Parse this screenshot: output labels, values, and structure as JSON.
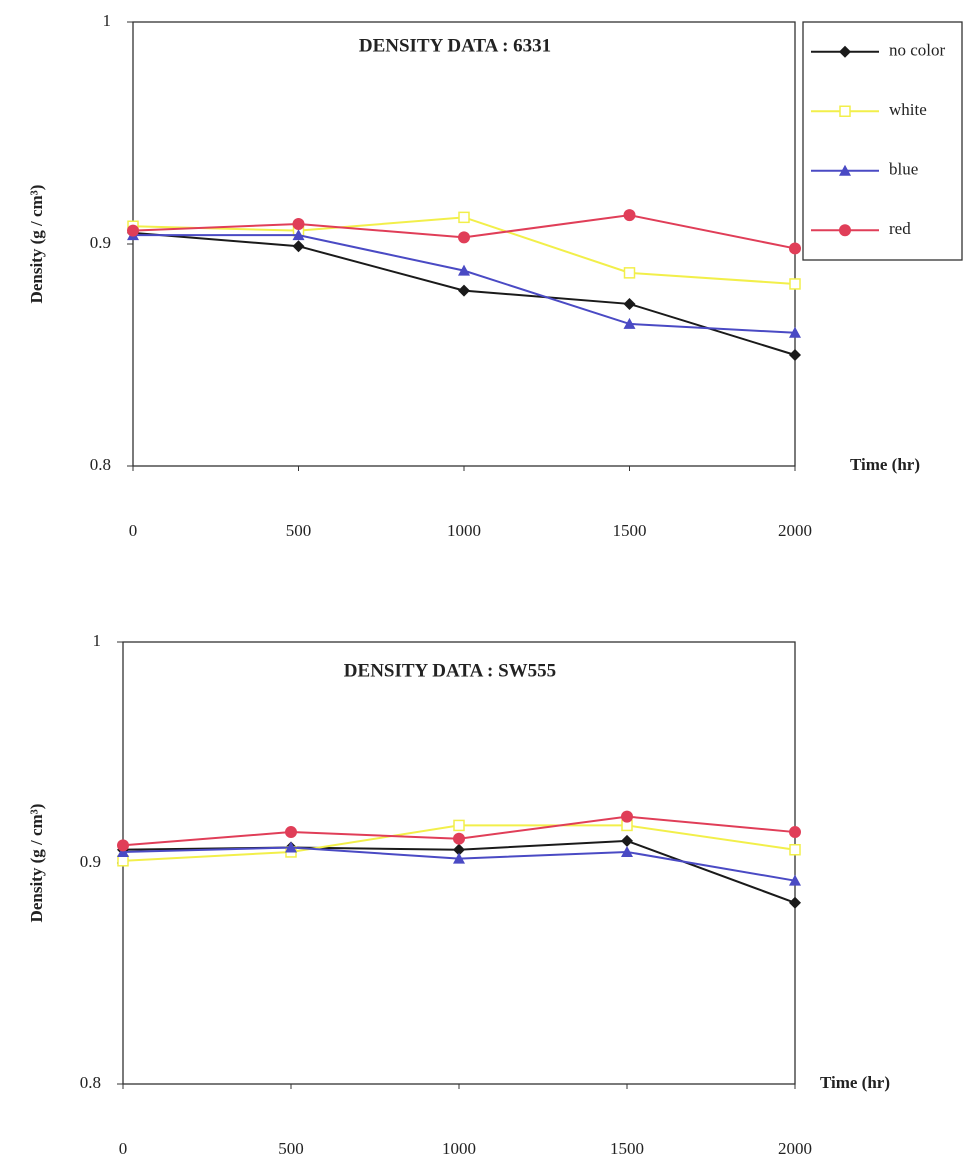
{
  "chart_data": [
    {
      "type": "line",
      "title": "DENSITY DATA :  6331",
      "xlabel": "Time (hr)",
      "ylabel": "Density  (g / cm³)",
      "x": [
        0,
        500,
        1000,
        1500,
        2000
      ],
      "xlim": [
        0,
        2000
      ],
      "xticks": [
        0,
        500,
        1000,
        1500,
        2000
      ],
      "ylim": [
        0.8,
        1
      ],
      "yticks": [
        0.8,
        0.9,
        1
      ],
      "legend": "right",
      "series": [
        {
          "name": "no color",
          "color": "#1a1a1a",
          "marker": "diamond",
          "values": [
            0.905,
            0.899,
            0.879,
            0.873,
            0.85
          ]
        },
        {
          "name": "white",
          "color": "#f2ef4a",
          "marker": "open-square",
          "values": [
            0.908,
            0.906,
            0.912,
            0.887,
            0.882
          ]
        },
        {
          "name": "blue",
          "color": "#4a4ac4",
          "marker": "triangle",
          "values": [
            0.904,
            0.904,
            0.888,
            0.864,
            0.86
          ]
        },
        {
          "name": "red",
          "color": "#e03e58",
          "marker": "circle",
          "values": [
            0.906,
            0.909,
            0.903,
            0.913,
            0.898
          ]
        }
      ]
    },
    {
      "type": "line",
      "title": "DENSITY DATA : SW555",
      "xlabel": "Time (hr)",
      "ylabel": "Density (g / cm³)",
      "x": [
        0,
        500,
        1000,
        1500,
        2000
      ],
      "xlim": [
        0,
        2000
      ],
      "xticks": [
        0,
        500,
        1000,
        1500,
        2000
      ],
      "ylim": [
        0.8,
        1
      ],
      "yticks": [
        0.8,
        0.9,
        1
      ],
      "legend": "none",
      "series": [
        {
          "color": "#1a1a1a",
          "marker": "diamond",
          "values": [
            0.906,
            0.907,
            0.906,
            0.91,
            0.882
          ]
        },
        {
          "color": "#f2ef4a",
          "marker": "open-square",
          "values": [
            0.901,
            0.905,
            0.917,
            0.917,
            0.906
          ]
        },
        {
          "color": "#4a4ac4",
          "marker": "triangle",
          "values": [
            0.905,
            0.907,
            0.902,
            0.905,
            0.892
          ]
        },
        {
          "color": "#e03e58",
          "marker": "circle",
          "values": [
            0.908,
            0.914,
            0.911,
            0.921,
            0.914
          ]
        }
      ]
    }
  ]
}
